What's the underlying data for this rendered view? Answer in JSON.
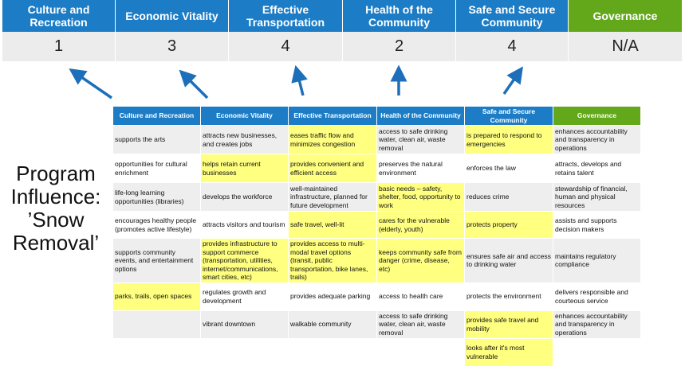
{
  "categories": [
    {
      "label": "Culture and Recreation",
      "score": "1",
      "color": "#1c7dc6"
    },
    {
      "label": "Economic Vitality",
      "score": "3",
      "color": "#1c7dc6"
    },
    {
      "label": "Effective Transportation",
      "score": "4",
      "color": "#1c7dc6"
    },
    {
      "label": "Health of the Community",
      "score": "2",
      "color": "#1c7dc6"
    },
    {
      "label": "Safe and Secure Community",
      "score": "4",
      "color": "#1c7dc6"
    },
    {
      "label": "Governance",
      "score": "N/A",
      "color": "#62a81a"
    }
  ],
  "side_title": "Program Influence: ’Snow Removal’",
  "table": {
    "headers": [
      "Culture and Recreation",
      "Economic Vitality",
      "Effective Transportation",
      "Health of the Community",
      "Safe and Secure Community",
      "Governance"
    ],
    "highlight_color": "#ffff80",
    "rows": [
      [
        {
          "t": "supports the arts"
        },
        {
          "t": "attracts new businesses, and creates jobs"
        },
        {
          "t": "eases traffic flow and minimizes congestion",
          "h": true
        },
        {
          "t": "access to safe drinking water, clean air, waste removal"
        },
        {
          "t": "is prepared to respond to emergencies",
          "h": true
        },
        {
          "t": "enhances accountability and transparency in operations"
        }
      ],
      [
        {
          "t": "opportunities for cultural enrichment"
        },
        {
          "t": "helps retain current businesses",
          "h": true
        },
        {
          "t": "provides convenient and efficient access",
          "h": true
        },
        {
          "t": "preserves the natural environment"
        },
        {
          "t": "enforces the law"
        },
        {
          "t": "attracts, develops and retains talent"
        }
      ],
      [
        {
          "t": "life-long learning opportunities (libraries)"
        },
        {
          "t": "develops the workforce"
        },
        {
          "t": "well-maintained infrastructure, planned for future development"
        },
        {
          "t": "basic needs – safety, shelter, food, opportunity to work",
          "h": true
        },
        {
          "t": "reduces crime"
        },
        {
          "t": "stewardship of financial, human and physical resources"
        }
      ],
      [
        {
          "t": "encourages healthy people (promotes active lifestyle)"
        },
        {
          "t": "attracts visitors and tourism"
        },
        {
          "t": "safe travel, well-lit",
          "h": true
        },
        {
          "t": "cares for the vulnerable (elderly, youth)",
          "h": true
        },
        {
          "t": "protects property",
          "h": true
        },
        {
          "t": "assists and supports decision makers"
        }
      ],
      [
        {
          "t": "supports community events, and entertainment options"
        },
        {
          "t": "provides infrastructure to support commerce (transportation, utilities, internet/communications, smart cities, etc)",
          "h": true
        },
        {
          "t": "provides access to multi-modal travel options (transit, public transportation, bike lanes, trails)",
          "h": true
        },
        {
          "t": "keeps community safe from danger (crime, disease, etc)",
          "h": true
        },
        {
          "t": "ensures safe air and access to drinking water"
        },
        {
          "t": "maintains regulatory compliance"
        }
      ],
      [
        {
          "t": "parks, trails, open spaces",
          "h": true
        },
        {
          "t": "regulates growth and development"
        },
        {
          "t": "provides adequate parking"
        },
        {
          "t": "access to health care"
        },
        {
          "t": "protects the environment"
        },
        {
          "t": "delivers responsible and courteous service"
        }
      ],
      [
        {
          "t": ""
        },
        {
          "t": "vibrant downtown"
        },
        {
          "t": "walkable community"
        },
        {
          "t": "access to safe drinking water, clean air, waste removal"
        },
        {
          "t": "provides safe travel and mobility",
          "h": true
        },
        {
          "t": "enhances accountability and transparency in operations"
        }
      ],
      [
        {
          "t": ""
        },
        {
          "t": ""
        },
        {
          "t": ""
        },
        {
          "t": ""
        },
        {
          "t": "looks after it's most vulnerable",
          "h": true
        },
        {
          "t": ""
        }
      ]
    ]
  }
}
